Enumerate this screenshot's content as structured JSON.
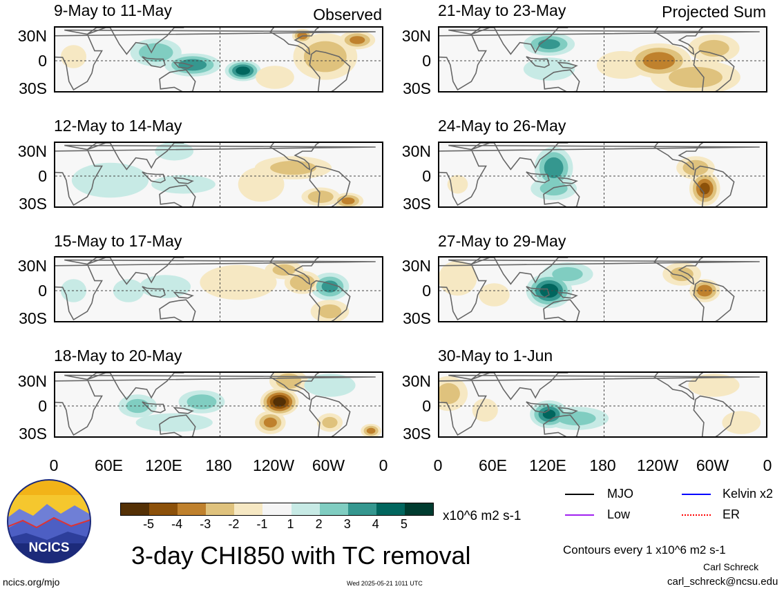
{
  "header": {
    "left_tag": "Observed",
    "right_tag": "Projected Sum"
  },
  "panels": [
    {
      "title": "9-May to 11-May"
    },
    {
      "title": "12-May to 14-May"
    },
    {
      "title": "15-May to 17-May"
    },
    {
      "title": "18-May to 20-May"
    },
    {
      "title": "21-May to 23-May"
    },
    {
      "title": "24-May to 26-May"
    },
    {
      "title": "27-May to 29-May"
    },
    {
      "title": "30-May to 1-Jun"
    }
  ],
  "lat_labels": [
    "30N",
    "0",
    "30S"
  ],
  "lon_labels": [
    "0",
    "60E",
    "120E",
    "180",
    "120W",
    "60W",
    "0"
  ],
  "colorbar": {
    "ticks": [
      "-5",
      "-4",
      "-3",
      "-2",
      "-1",
      "1",
      "2",
      "3",
      "4",
      "5"
    ],
    "unit": "x10^6 m2 s-1",
    "colors": [
      "#543005",
      "#8c510a",
      "#bf812d",
      "#dfc27d",
      "#f6e8c3",
      "#f5f5f5",
      "#c7eae5",
      "#80cdc1",
      "#35978f",
      "#01665e",
      "#003c30"
    ]
  },
  "legend": [
    {
      "label": "MJO",
      "color": "#000000"
    },
    {
      "label": "Kelvin x2",
      "color": "#0000ff"
    },
    {
      "label": "Low",
      "color": "#a020f0"
    },
    {
      "label": "ER",
      "color": "#ff0000"
    }
  ],
  "logo_text": "NCICS",
  "main_title": "3-day CHI850 with TC removal",
  "contour_note": "Contours every 1 x10^6 m2 s-1",
  "author": "Carl Schreck",
  "email": "carl_schreck@ncsu.edu",
  "site": "ncics.org/mjo",
  "timestamp": "Wed 2025-05-21 1011 UTC",
  "chart_data": {
    "type": "heatmap",
    "variable": "3-day CHI850 with TC removal",
    "units": "x10^6 m2 s-1",
    "lon_range": [
      0,
      360
    ],
    "lat_range": [
      -40,
      40
    ],
    "panels": [
      {
        "title": "9-May to 11-May",
        "blobs": [
          {
            "lon": 150,
            "lat": -5,
            "v": 3.5,
            "sx": 22,
            "sy": 10
          },
          {
            "lon": 205,
            "lat": -12,
            "v": 4.5,
            "sx": 14,
            "sy": 9
          },
          {
            "lon": 110,
            "lat": 10,
            "v": 2.5,
            "sx": 20,
            "sy": 12
          },
          {
            "lon": 295,
            "lat": 5,
            "v": -2.5,
            "sx": 25,
            "sy": 20
          },
          {
            "lon": 330,
            "lat": 25,
            "v": -3,
            "sx": 14,
            "sy": 8
          },
          {
            "lon": 270,
            "lat": 30,
            "v": -3.5,
            "sx": 8,
            "sy": 6
          },
          {
            "lon": 20,
            "lat": 5,
            "v": -1.5,
            "sx": 10,
            "sy": 10
          },
          {
            "lon": 240,
            "lat": -20,
            "v": -1.5,
            "sx": 15,
            "sy": 10
          }
        ]
      },
      {
        "title": "12-May to 14-May",
        "blobs": [
          {
            "lon": 60,
            "lat": -5,
            "v": 1.5,
            "sx": 30,
            "sy": 15
          },
          {
            "lon": 140,
            "lat": -10,
            "v": 1.2,
            "sx": 25,
            "sy": 8
          },
          {
            "lon": 260,
            "lat": 10,
            "v": -2,
            "sx": 30,
            "sy": 10
          },
          {
            "lon": 320,
            "lat": -30,
            "v": -3,
            "sx": 12,
            "sy": 7
          },
          {
            "lon": 290,
            "lat": -25,
            "v": -2.5,
            "sx": 15,
            "sy": 8
          },
          {
            "lon": 225,
            "lat": -10,
            "v": -1.5,
            "sx": 18,
            "sy": 15
          },
          {
            "lon": 130,
            "lat": 30,
            "v": 1.5,
            "sx": 15,
            "sy": 8
          }
        ]
      },
      {
        "title": "15-May to 17-May",
        "blobs": [
          {
            "lon": 300,
            "lat": 5,
            "v": 3,
            "sx": 15,
            "sy": 12
          },
          {
            "lon": 270,
            "lat": 10,
            "v": -2.8,
            "sx": 14,
            "sy": 10
          },
          {
            "lon": 250,
            "lat": 25,
            "v": -2,
            "sx": 15,
            "sy": 8
          },
          {
            "lon": 200,
            "lat": 10,
            "v": -1.2,
            "sx": 30,
            "sy": 15
          },
          {
            "lon": 20,
            "lat": 0,
            "v": 1.2,
            "sx": 10,
            "sy": 10
          },
          {
            "lon": 120,
            "lat": 5,
            "v": 1.3,
            "sx": 20,
            "sy": 10
          },
          {
            "lon": 300,
            "lat": -25,
            "v": -2,
            "sx": 15,
            "sy": 10
          },
          {
            "lon": 80,
            "lat": 0,
            "v": 1,
            "sx": 12,
            "sy": 10
          }
        ]
      },
      {
        "title": "18-May to 20-May",
        "blobs": [
          {
            "lon": 245,
            "lat": 5,
            "v": -5.5,
            "sx": 15,
            "sy": 12
          },
          {
            "lon": 235,
            "lat": -20,
            "v": -3,
            "sx": 12,
            "sy": 10
          },
          {
            "lon": 255,
            "lat": 30,
            "v": -2.5,
            "sx": 15,
            "sy": 10
          },
          {
            "lon": 345,
            "lat": -30,
            "v": -3,
            "sx": 8,
            "sy": 6
          },
          {
            "lon": 300,
            "lat": -20,
            "v": -2,
            "sx": 10,
            "sy": 8
          },
          {
            "lon": 160,
            "lat": 5,
            "v": 2.3,
            "sx": 18,
            "sy": 10
          },
          {
            "lon": 90,
            "lat": 0,
            "v": 2,
            "sx": 15,
            "sy": 10
          },
          {
            "lon": 130,
            "lat": -20,
            "v": 1.5,
            "sx": 30,
            "sy": 8
          },
          {
            "lon": 300,
            "lat": 25,
            "v": 1.3,
            "sx": 20,
            "sy": 10
          }
        ]
      },
      {
        "title": "21-May to 23-May",
        "blobs": [
          {
            "lon": 120,
            "lat": 20,
            "v": 3,
            "sx": 20,
            "sy": 10
          },
          {
            "lon": 120,
            "lat": -10,
            "v": 1.8,
            "sx": 20,
            "sy": 10
          },
          {
            "lon": 240,
            "lat": 0,
            "v": -3.5,
            "sx": 25,
            "sy": 15
          },
          {
            "lon": 280,
            "lat": -20,
            "v": -2,
            "sx": 35,
            "sy": 15
          },
          {
            "lon": 300,
            "lat": 15,
            "v": -2,
            "sx": 20,
            "sy": 12
          },
          {
            "lon": 200,
            "lat": -5,
            "v": -1.2,
            "sx": 20,
            "sy": 12
          }
        ]
      },
      {
        "title": "24-May to 26-May",
        "blobs": [
          {
            "lon": 125,
            "lat": 10,
            "v": 3.5,
            "sx": 15,
            "sy": 18
          },
          {
            "lon": 125,
            "lat": -15,
            "v": 2,
            "sx": 18,
            "sy": 10
          },
          {
            "lon": 290,
            "lat": -15,
            "v": -4,
            "sx": 12,
            "sy": 15
          },
          {
            "lon": 280,
            "lat": 10,
            "v": -2.5,
            "sx": 15,
            "sy": 10
          },
          {
            "lon": 20,
            "lat": -10,
            "v": -1.2,
            "sx": 8,
            "sy": 8
          }
        ]
      },
      {
        "title": "27-May to 29-May",
        "blobs": [
          {
            "lon": 120,
            "lat": 0,
            "v": 4.5,
            "sx": 18,
            "sy": 15
          },
          {
            "lon": 140,
            "lat": 20,
            "v": 2,
            "sx": 20,
            "sy": 10
          },
          {
            "lon": 290,
            "lat": 0,
            "v": -3.5,
            "sx": 12,
            "sy": 10
          },
          {
            "lon": 265,
            "lat": 20,
            "v": -2,
            "sx": 15,
            "sy": 10
          },
          {
            "lon": 20,
            "lat": 15,
            "v": -1.8,
            "sx": 15,
            "sy": 15
          },
          {
            "lon": 60,
            "lat": -5,
            "v": -1.5,
            "sx": 12,
            "sy": 10
          }
        ]
      },
      {
        "title": "30-May to 1-Jun",
        "blobs": [
          {
            "lon": 120,
            "lat": -10,
            "v": 4,
            "sx": 15,
            "sy": 12
          },
          {
            "lon": 150,
            "lat": -15,
            "v": 2,
            "sx": 25,
            "sy": 10
          },
          {
            "lon": 10,
            "lat": 15,
            "v": -2,
            "sx": 15,
            "sy": 15
          },
          {
            "lon": 50,
            "lat": -5,
            "v": -1.5,
            "sx": 10,
            "sy": 10
          },
          {
            "lon": 300,
            "lat": 25,
            "v": -1.2,
            "sx": 20,
            "sy": 10
          },
          {
            "lon": 330,
            "lat": -20,
            "v": -1.2,
            "sx": 15,
            "sy": 10
          }
        ]
      }
    ]
  }
}
